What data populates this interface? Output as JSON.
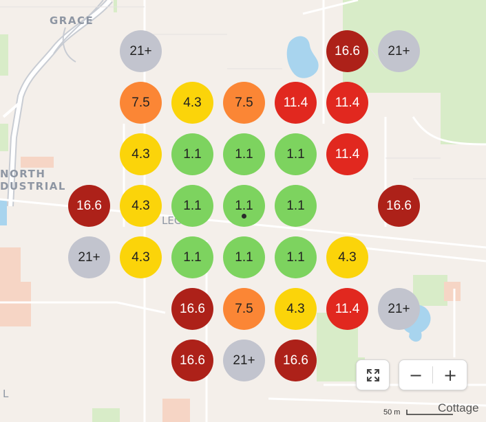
{
  "map": {
    "labels": {
      "grace": "GRACE",
      "north": "NORTH",
      "industrial": "DUSTRIAL",
      "leg": "LEG",
      "edge_letter": "L",
      "cottage": "Cottage"
    },
    "scale_label": "50 m",
    "controls": {
      "fullscreen_icon": "fullscreen-icon",
      "zoom_out_symbol": "−",
      "zoom_in_symbol": "+"
    },
    "legend_colors": {
      "1.1": "#7dd35f",
      "4.3": "#fbd40a",
      "7.5": "#fb8635",
      "11.4": "#e1281f",
      "16.6": "#ad2119",
      "21+": "#c2c4ce"
    },
    "markers": [
      {
        "value": "21+",
        "color": "#c2c4ce",
        "text_color": "#222"
      },
      {
        "value": "16.6",
        "color": "#ad2119",
        "text_color": "#ffffff"
      },
      {
        "value": "21+",
        "color": "#c2c4ce",
        "text_color": "#222"
      },
      {
        "value": "7.5",
        "color": "#fb8635",
        "text_color": "#222"
      },
      {
        "value": "4.3",
        "color": "#fbd40a",
        "text_color": "#222"
      },
      {
        "value": "7.5",
        "color": "#fb8635",
        "text_color": "#222"
      },
      {
        "value": "11.4",
        "color": "#e1281f",
        "text_color": "#ffffff"
      },
      {
        "value": "11.4",
        "color": "#e1281f",
        "text_color": "#ffffff"
      },
      {
        "value": "4.3",
        "color": "#fbd40a",
        "text_color": "#222"
      },
      {
        "value": "1.1",
        "color": "#7dd35f",
        "text_color": "#222"
      },
      {
        "value": "1.1",
        "color": "#7dd35f",
        "text_color": "#222"
      },
      {
        "value": "1.1",
        "color": "#7dd35f",
        "text_color": "#222"
      },
      {
        "value": "11.4",
        "color": "#e1281f",
        "text_color": "#ffffff"
      },
      {
        "value": "16.6",
        "color": "#ad2119",
        "text_color": "#ffffff"
      },
      {
        "value": "4.3",
        "color": "#fbd40a",
        "text_color": "#222"
      },
      {
        "value": "1.1",
        "color": "#7dd35f",
        "text_color": "#222"
      },
      {
        "value": "1.1",
        "color": "#7dd35f",
        "text_color": "#222",
        "current_location": true
      },
      {
        "value": "1.1",
        "color": "#7dd35f",
        "text_color": "#222"
      },
      {
        "value": "16.6",
        "color": "#ad2119",
        "text_color": "#ffffff"
      },
      {
        "value": "21+",
        "color": "#c2c4ce",
        "text_color": "#222"
      },
      {
        "value": "4.3",
        "color": "#fbd40a",
        "text_color": "#222"
      },
      {
        "value": "1.1",
        "color": "#7dd35f",
        "text_color": "#222"
      },
      {
        "value": "1.1",
        "color": "#7dd35f",
        "text_color": "#222"
      },
      {
        "value": "1.1",
        "color": "#7dd35f",
        "text_color": "#222"
      },
      {
        "value": "4.3",
        "color": "#fbd40a",
        "text_color": "#222"
      },
      {
        "value": "16.6",
        "color": "#ad2119",
        "text_color": "#ffffff"
      },
      {
        "value": "7.5",
        "color": "#fb8635",
        "text_color": "#222"
      },
      {
        "value": "4.3",
        "color": "#fbd40a",
        "text_color": "#222"
      },
      {
        "value": "11.4",
        "color": "#e1281f",
        "text_color": "#ffffff"
      },
      {
        "value": "21+",
        "color": "#c2c4ce",
        "text_color": "#222"
      },
      {
        "value": "16.6",
        "color": "#ad2119",
        "text_color": "#ffffff"
      },
      {
        "value": "21+",
        "color": "#c2c4ce",
        "text_color": "#222"
      },
      {
        "value": "16.6",
        "color": "#ad2119",
        "text_color": "#ffffff"
      }
    ]
  }
}
